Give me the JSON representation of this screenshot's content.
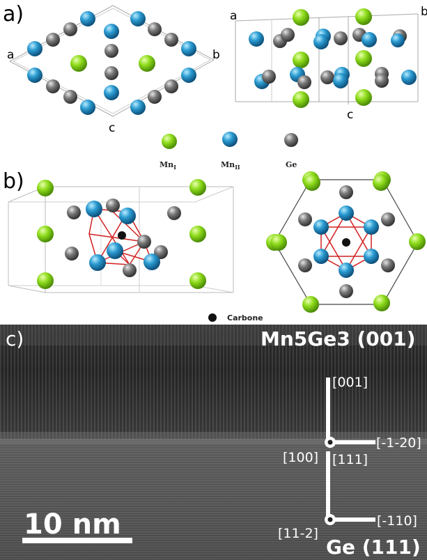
{
  "panels": {
    "a": "a)",
    "b": "b)",
    "c": "c)"
  },
  "axes_left": {
    "a": "a",
    "b": "b",
    "c": "c"
  },
  "axes_right": {
    "a": "a",
    "b": "b",
    "c": "c"
  },
  "legend": {
    "mn1_base": "Mn",
    "mn1_sub": "I",
    "mn2_base": "Mn",
    "mn2_sub": "II",
    "ge": "Ge",
    "carbone": "Carbone"
  },
  "colors": {
    "mn1": "#8fdc1c",
    "mn2": "#2a9ad0",
    "ge": "#7a7a7a",
    "carbon": "#111111",
    "bond": "#d22020"
  },
  "tem": {
    "top_title": "Mn5Ge3 (001)",
    "bottom_title": "Ge (111)",
    "top_up": "[001]",
    "top_right": "[-1-20]",
    "top_dot": "[100]",
    "bottom_up": "[111]",
    "bottom_right": "[-110]",
    "bottom_dot": "[11-2]",
    "scale_bar": "10 nm"
  }
}
